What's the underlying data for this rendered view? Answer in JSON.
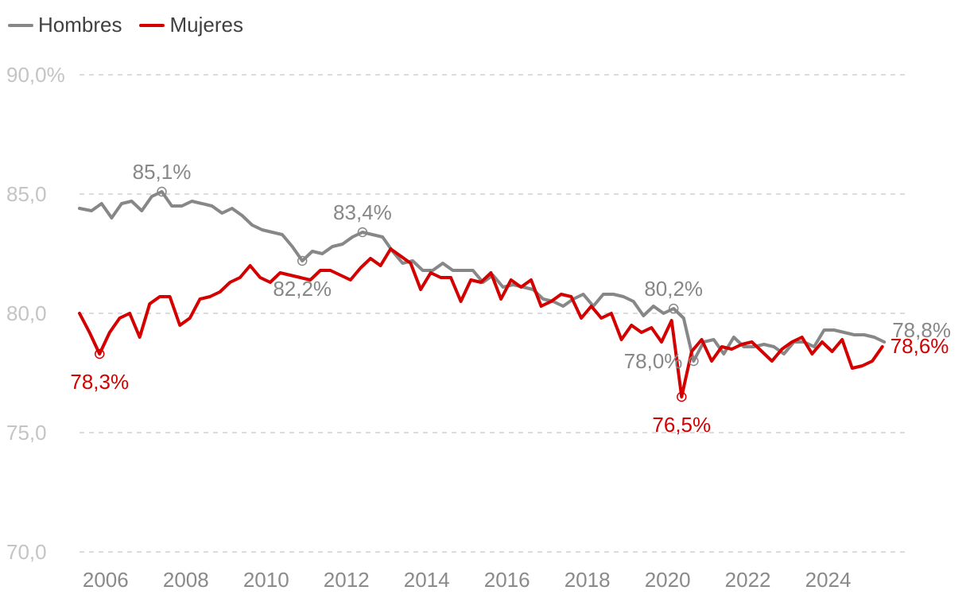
{
  "colors": {
    "hombres": "#878787",
    "mujeres": "#d40000",
    "grid": "#d0d0d0",
    "tick": "#c4c4c4",
    "xtick": "#8a8a8a"
  },
  "legend": {
    "hombres": "Hombres",
    "mujeres": "Mujeres"
  },
  "chart_data": {
    "type": "line",
    "title": "",
    "xlabel": "",
    "ylabel": "",
    "ylim": [
      70,
      90
    ],
    "xlim": [
      2005.0,
      2025.6
    ],
    "y_ticks": [
      {
        "value": 90,
        "label": "90,0%"
      },
      {
        "value": 85,
        "label": "85,0"
      },
      {
        "value": 80,
        "label": "80,0"
      },
      {
        "value": 75,
        "label": "75,0"
      },
      {
        "value": 70,
        "label": "70,0"
      }
    ],
    "x_ticks": [
      {
        "value": 2005.65,
        "label": "2006"
      },
      {
        "value": 2007.65,
        "label": "2008"
      },
      {
        "value": 2009.65,
        "label": "2010"
      },
      {
        "value": 2011.65,
        "label": "2012"
      },
      {
        "value": 2013.65,
        "label": "2014"
      },
      {
        "value": 2015.65,
        "label": "2016"
      },
      {
        "value": 2017.65,
        "label": "2018"
      },
      {
        "value": 2019.65,
        "label": "2020"
      },
      {
        "value": 2021.65,
        "label": "2022"
      },
      {
        "value": 2023.65,
        "label": "2024"
      }
    ],
    "grid": true,
    "legend_position": "top-left",
    "series": [
      {
        "name": "Hombres",
        "color": "#878787",
        "x": [
          2005.0,
          2005.3,
          2005.55,
          2005.8,
          2006.05,
          2006.3,
          2006.55,
          2006.8,
          2007.05,
          2007.3,
          2007.55,
          2007.8,
          2008.05,
          2008.3,
          2008.55,
          2008.8,
          2009.05,
          2009.3,
          2009.55,
          2009.8,
          2010.05,
          2010.3,
          2010.55,
          2010.8,
          2011.05,
          2011.3,
          2011.55,
          2011.8,
          2012.05,
          2012.3,
          2012.55,
          2012.8,
          2013.05,
          2013.3,
          2013.55,
          2013.8,
          2014.05,
          2014.3,
          2014.55,
          2014.8,
          2015.05,
          2015.3,
          2015.55,
          2015.8,
          2016.05,
          2016.3,
          2016.55,
          2016.8,
          2017.05,
          2017.3,
          2017.55,
          2017.8,
          2018.05,
          2018.3,
          2018.55,
          2018.8,
          2019.05,
          2019.3,
          2019.55,
          2019.8,
          2020.05,
          2020.3,
          2020.55,
          2020.8,
          2021.05,
          2021.3,
          2021.55,
          2021.8,
          2022.05,
          2022.3,
          2022.55,
          2022.8,
          2023.05,
          2023.3,
          2023.55,
          2023.8,
          2024.05,
          2024.3,
          2024.55,
          2024.8,
          2025.05
        ],
        "values": [
          84.4,
          84.3,
          84.6,
          84.0,
          84.6,
          84.7,
          84.3,
          84.9,
          85.1,
          84.5,
          84.5,
          84.7,
          84.6,
          84.5,
          84.2,
          84.4,
          84.1,
          83.7,
          83.5,
          83.4,
          83.3,
          82.8,
          82.2,
          82.6,
          82.5,
          82.8,
          82.9,
          83.2,
          83.4,
          83.3,
          83.2,
          82.6,
          82.1,
          82.2,
          81.8,
          81.8,
          82.1,
          81.8,
          81.8,
          81.8,
          81.3,
          81.6,
          81.1,
          81.2,
          81.1,
          81.0,
          80.6,
          80.5,
          80.3,
          80.6,
          80.8,
          80.3,
          80.8,
          80.8,
          80.7,
          80.5,
          79.9,
          80.3,
          80.0,
          80.2,
          79.8,
          78.0,
          78.8,
          78.9,
          78.3,
          79.0,
          78.6,
          78.6,
          78.7,
          78.6,
          78.3,
          78.8,
          78.8,
          78.6,
          79.3,
          79.3,
          79.2,
          79.1,
          79.1,
          79.0,
          78.8
        ],
        "annotations": [
          {
            "x": 2007.05,
            "y": 85.1,
            "label": "85,1%",
            "pos": "above"
          },
          {
            "x": 2010.55,
            "y": 82.2,
            "label": "82,2%",
            "pos": "below"
          },
          {
            "x": 2012.05,
            "y": 83.4,
            "label": "83,4%",
            "pos": "above"
          },
          {
            "x": 2019.8,
            "y": 80.2,
            "label": "80,2%",
            "pos": "above"
          },
          {
            "x": 2020.3,
            "y": 78.0,
            "label": "78,0%",
            "pos": "left"
          },
          {
            "x": 2025.05,
            "y": 78.8,
            "label": "78,8%",
            "pos": "right"
          }
        ]
      },
      {
        "name": "Mujeres",
        "color": "#d40000",
        "x": [
          2005.0,
          2005.25,
          2005.5,
          2005.75,
          2006.0,
          2006.25,
          2006.5,
          2006.75,
          2007.0,
          2007.25,
          2007.5,
          2007.75,
          2008.0,
          2008.25,
          2008.5,
          2008.75,
          2009.0,
          2009.25,
          2009.5,
          2009.75,
          2010.0,
          2010.25,
          2010.5,
          2010.75,
          2011.0,
          2011.25,
          2011.5,
          2011.75,
          2012.0,
          2012.25,
          2012.5,
          2012.75,
          2013.0,
          2013.25,
          2013.5,
          2013.75,
          2014.0,
          2014.25,
          2014.5,
          2014.75,
          2015.0,
          2015.25,
          2015.5,
          2015.75,
          2016.0,
          2016.25,
          2016.5,
          2016.75,
          2017.0,
          2017.25,
          2017.5,
          2017.75,
          2018.0,
          2018.25,
          2018.5,
          2018.75,
          2019.0,
          2019.25,
          2019.5,
          2019.75,
          2020.0,
          2020.25,
          2020.5,
          2020.75,
          2021.0,
          2021.25,
          2021.5,
          2021.75,
          2022.0,
          2022.25,
          2022.5,
          2022.75,
          2023.0,
          2023.25,
          2023.5,
          2023.75,
          2024.0,
          2024.25,
          2024.5,
          2024.75,
          2025.0
        ],
        "values": [
          80.0,
          79.2,
          78.3,
          79.2,
          79.8,
          80.0,
          79.0,
          80.4,
          80.7,
          80.7,
          79.5,
          79.8,
          80.6,
          80.7,
          80.9,
          81.3,
          81.5,
          82.0,
          81.5,
          81.3,
          81.7,
          81.6,
          81.5,
          81.4,
          81.8,
          81.8,
          81.6,
          81.4,
          81.9,
          82.3,
          82.0,
          82.7,
          82.4,
          82.1,
          81.0,
          81.7,
          81.5,
          81.5,
          80.5,
          81.4,
          81.3,
          81.7,
          80.6,
          81.4,
          81.1,
          81.4,
          80.3,
          80.5,
          80.8,
          80.7,
          79.8,
          80.3,
          79.8,
          80.0,
          78.9,
          79.5,
          79.2,
          79.4,
          78.8,
          79.7,
          76.5,
          78.4,
          78.9,
          78.0,
          78.6,
          78.5,
          78.7,
          78.8,
          78.4,
          78.0,
          78.5,
          78.8,
          79.0,
          78.3,
          78.8,
          78.4,
          78.9,
          77.7,
          77.8,
          78.0,
          78.6
        ],
        "annotations": [
          {
            "x": 2005.5,
            "y": 78.3,
            "label": "78,3%",
            "pos": "below"
          },
          {
            "x": 2020.0,
            "y": 76.5,
            "label": "76,5%",
            "pos": "below"
          },
          {
            "x": 2025.0,
            "y": 78.6,
            "label": "78,6%",
            "pos": "right"
          }
        ]
      }
    ]
  }
}
